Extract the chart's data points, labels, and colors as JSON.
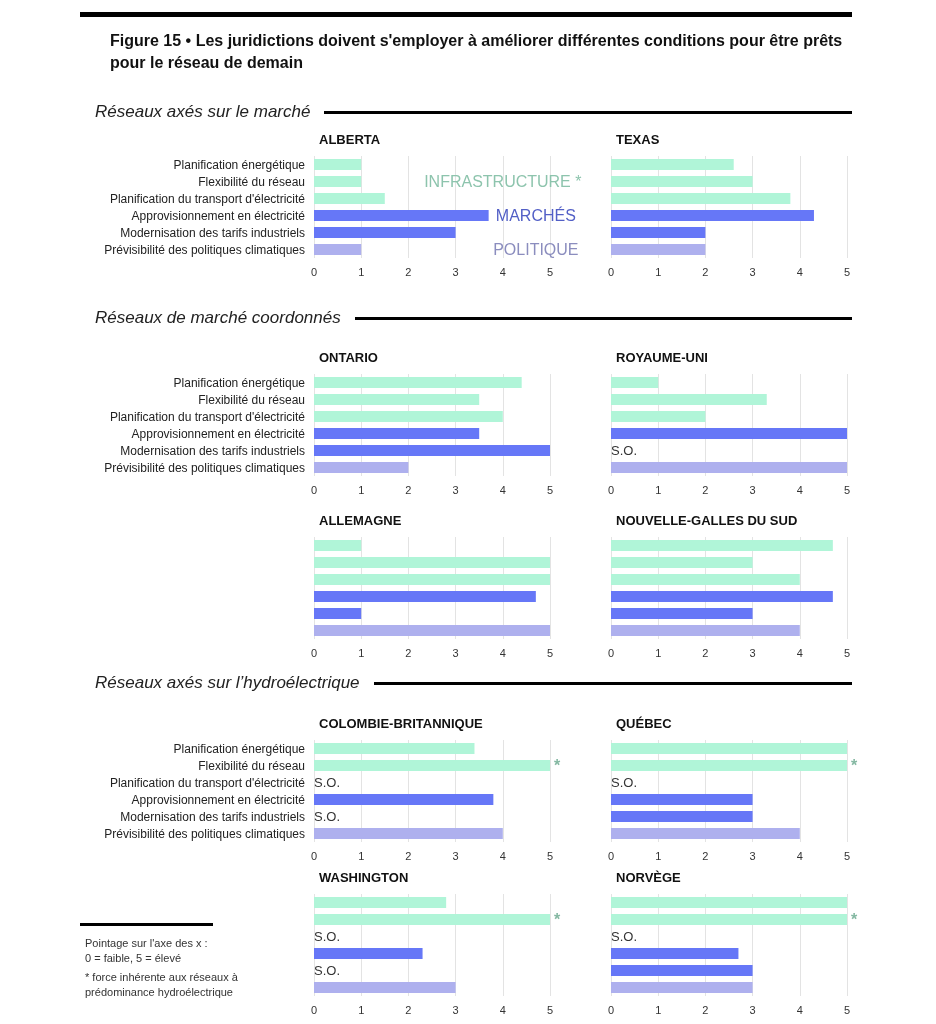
{
  "chart_data": [
    {
      "type": "bar",
      "orientation": "horizontal",
      "title": "ALBERTA",
      "subtitle": "Réseaux axés sur le marché",
      "categories": [
        "Planification énergétique",
        "Flexibilité du réseau",
        "Planification du transport d'électricité",
        "Approvisionnement en électricité",
        "Modernisation des tarifs industriels",
        "Prévisibilité des politiques climatiques"
      ],
      "values": [
        1,
        1,
        1.5,
        3.7,
        3,
        1
      ],
      "colors": [
        "#b0f5d8",
        "#b0f5d8",
        "#b0f5d8",
        "#6677f7",
        "#6677f7",
        "#aeb0ee"
      ],
      "xlim": [
        0,
        5
      ],
      "xticks": [
        0,
        1,
        2,
        3,
        4,
        5
      ],
      "grid": "x",
      "annotations": [
        "Figure 15  •  Les juridictions doivent s'employer à améliorer différentes conditions pour être prêts pour le réseau de demain",
        "INFRASTRUCTURE *",
        "MARCHÉS",
        "POLITIQUE"
      ]
    },
    {
      "type": "bar",
      "orientation": "horizontal",
      "title": "TEXAS",
      "categories": [
        null,
        null,
        null,
        null,
        null,
        null
      ],
      "values": [
        2.6,
        3,
        3.8,
        4.3,
        2,
        2
      ],
      "colors": [
        "#b0f5d8",
        "#b0f5d8",
        "#b0f5d8",
        "#6677f7",
        "#6677f7",
        "#aeb0ee"
      ],
      "xlim": [
        0,
        5
      ],
      "xticks": [
        0,
        1,
        2,
        3,
        4,
        5
      ],
      "grid": "x",
      "tick_labels": "x"
    },
    {
      "type": "bar",
      "orientation": "horizontal",
      "title": "ONTARIO",
      "subtitle": "Réseaux de marché coordonnés",
      "categories": [
        "Planification énergétique",
        "Flexibilité du réseau",
        "Planification du transport d'électricité",
        "Approvisionnement en électricité",
        "Modernisation des tarifs industriels",
        "Prévisibilité des politiques climatiques"
      ],
      "values": [
        4.4,
        3.5,
        4,
        3.5,
        5,
        2
      ],
      "colors": [
        "#b0f5d8",
        "#b0f5d8",
        "#b0f5d8",
        "#6677f7",
        "#6677f7",
        "#aeb0ee"
      ],
      "xlim": [
        0,
        5
      ],
      "xticks": [
        0,
        1,
        2,
        3,
        4,
        5
      ],
      "grid": "x"
    },
    {
      "type": "bar",
      "orientation": "horizontal",
      "title": "ROYAUME-UNI",
      "categories": [
        null,
        null,
        null,
        null,
        null,
        null
      ],
      "values": [
        1,
        3.3,
        2,
        5,
        null,
        5
      ],
      "value_labels": [
        null,
        null,
        null,
        null,
        "S.O.",
        null
      ],
      "colors": [
        "#b0f5d8",
        "#b0f5d8",
        "#b0f5d8",
        "#6677f7",
        "#6677f7",
        "#aeb0ee"
      ],
      "xlim": [
        0,
        5
      ],
      "xticks": [
        0,
        1,
        2,
        3,
        4,
        5
      ],
      "grid": "x",
      "tick_labels": "x"
    },
    {
      "type": "bar",
      "orientation": "horizontal",
      "title": "ALLEMAGNE",
      "categories": [
        null,
        null,
        null,
        null,
        null,
        null
      ],
      "values": [
        1,
        5,
        5,
        4.7,
        1,
        5
      ],
      "colors": [
        "#b0f5d8",
        "#b0f5d8",
        "#b0f5d8",
        "#6677f7",
        "#6677f7",
        "#aeb0ee"
      ],
      "xlim": [
        0,
        5
      ],
      "xticks": [
        0,
        1,
        2,
        3,
        4,
        5
      ],
      "grid": "x",
      "tick_labels": "x"
    },
    {
      "type": "bar",
      "orientation": "horizontal",
      "title": "NOUVELLE-GALLES DU SUD",
      "categories": [
        null,
        null,
        null,
        null,
        null,
        null
      ],
      "values": [
        4.7,
        3,
        4,
        4.7,
        3,
        4
      ],
      "colors": [
        "#b0f5d8",
        "#b0f5d8",
        "#b0f5d8",
        "#6677f7",
        "#6677f7",
        "#aeb0ee"
      ],
      "xlim": [
        0,
        5
      ],
      "xticks": [
        0,
        1,
        2,
        3,
        4,
        5
      ],
      "grid": "x",
      "tick_labels": "x"
    },
    {
      "type": "bar",
      "orientation": "horizontal",
      "title": "COLOMBIE-BRITANNIQUE",
      "subtitle": "Réseaux axés sur l’hydroélectrique",
      "categories": [
        "Planification énergétique",
        "Flexibilité du réseau",
        "Planification du transport d'électricité",
        "Approvisionnement en électricité",
        "Modernisation des tarifs industriels",
        "Prévisibilité des politiques climatiques"
      ],
      "values": [
        3.4,
        5,
        null,
        3.8,
        null,
        4
      ],
      "value_labels": [
        null,
        "*",
        "S.O.",
        null,
        "S.O.",
        null
      ],
      "colors": [
        "#b0f5d8",
        "#b0f5d8",
        "#b0f5d8",
        "#6677f7",
        "#6677f7",
        "#aeb0ee"
      ],
      "xlim": [
        0,
        5
      ],
      "xticks": [
        0,
        1,
        2,
        3,
        4,
        5
      ],
      "grid": "x"
    },
    {
      "type": "bar",
      "orientation": "horizontal",
      "title": "QUÉBEC",
      "categories": [
        null,
        null,
        null,
        null,
        null,
        null
      ],
      "values": [
        5,
        5,
        null,
        3,
        3,
        4
      ],
      "value_labels": [
        null,
        "*",
        "S.O.",
        null,
        null,
        null
      ],
      "colors": [
        "#b0f5d8",
        "#b0f5d8",
        "#b0f5d8",
        "#6677f7",
        "#6677f7",
        "#aeb0ee"
      ],
      "xlim": [
        0,
        5
      ],
      "xticks": [
        0,
        1,
        2,
        3,
        4,
        5
      ],
      "grid": "x",
      "tick_labels": "x"
    },
    {
      "type": "bar",
      "orientation": "horizontal",
      "title": "WASHINGTON",
      "categories": [
        null,
        null,
        null,
        null,
        null,
        null
      ],
      "values": [
        2.8,
        5,
        null,
        2.3,
        null,
        3
      ],
      "value_labels": [
        null,
        "*",
        "S.O.",
        null,
        "S.O.",
        null
      ],
      "colors": [
        "#b0f5d8",
        "#b0f5d8",
        "#b0f5d8",
        "#6677f7",
        "#6677f7",
        "#aeb0ee"
      ],
      "xlim": [
        0,
        5
      ],
      "xticks": [
        0,
        1,
        2,
        3,
        4,
        5
      ],
      "grid": "x",
      "tick_labels": "x",
      "annotations": [
        "Pointage sur l'axe des x :\n0 = faible, 5 = élevé",
        "* force inhérente aux réseaux à prédominance hydroélectrique"
      ]
    },
    {
      "type": "bar",
      "orientation": "horizontal",
      "title": "NORVÈGE",
      "categories": [
        null,
        null,
        null,
        null,
        null,
        null
      ],
      "values": [
        5,
        5,
        null,
        2.7,
        3,
        3
      ],
      "value_labels": [
        null,
        "*",
        "S.O.",
        null,
        null,
        null
      ],
      "colors": [
        "#b0f5d8",
        "#b0f5d8",
        "#b0f5d8",
        "#6677f7",
        "#6677f7",
        "#aeb0ee"
      ],
      "xlim": [
        0,
        5
      ],
      "xticks": [
        0,
        1,
        2,
        3,
        4,
        5
      ],
      "grid": "x",
      "tick_labels": "x"
    }
  ]
}
